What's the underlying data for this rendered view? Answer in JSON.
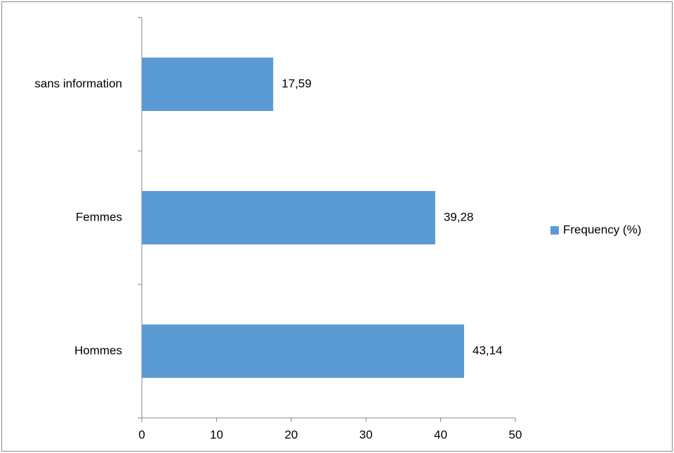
{
  "chart_data": {
    "type": "bar",
    "orientation": "horizontal",
    "categories": [
      "Hommes",
      "Femmes",
      "sans information"
    ],
    "series": [
      {
        "name": "Frequency (%)",
        "color": "#5b9bd5",
        "values": [
          43.14,
          39.28,
          17.59
        ],
        "value_labels": [
          "43,14",
          "39,28",
          "17,59"
        ]
      }
    ],
    "xlim": [
      0,
      50
    ],
    "xticks": [
      0,
      10,
      20,
      30,
      40,
      50
    ],
    "grid": false,
    "legend": "right"
  }
}
